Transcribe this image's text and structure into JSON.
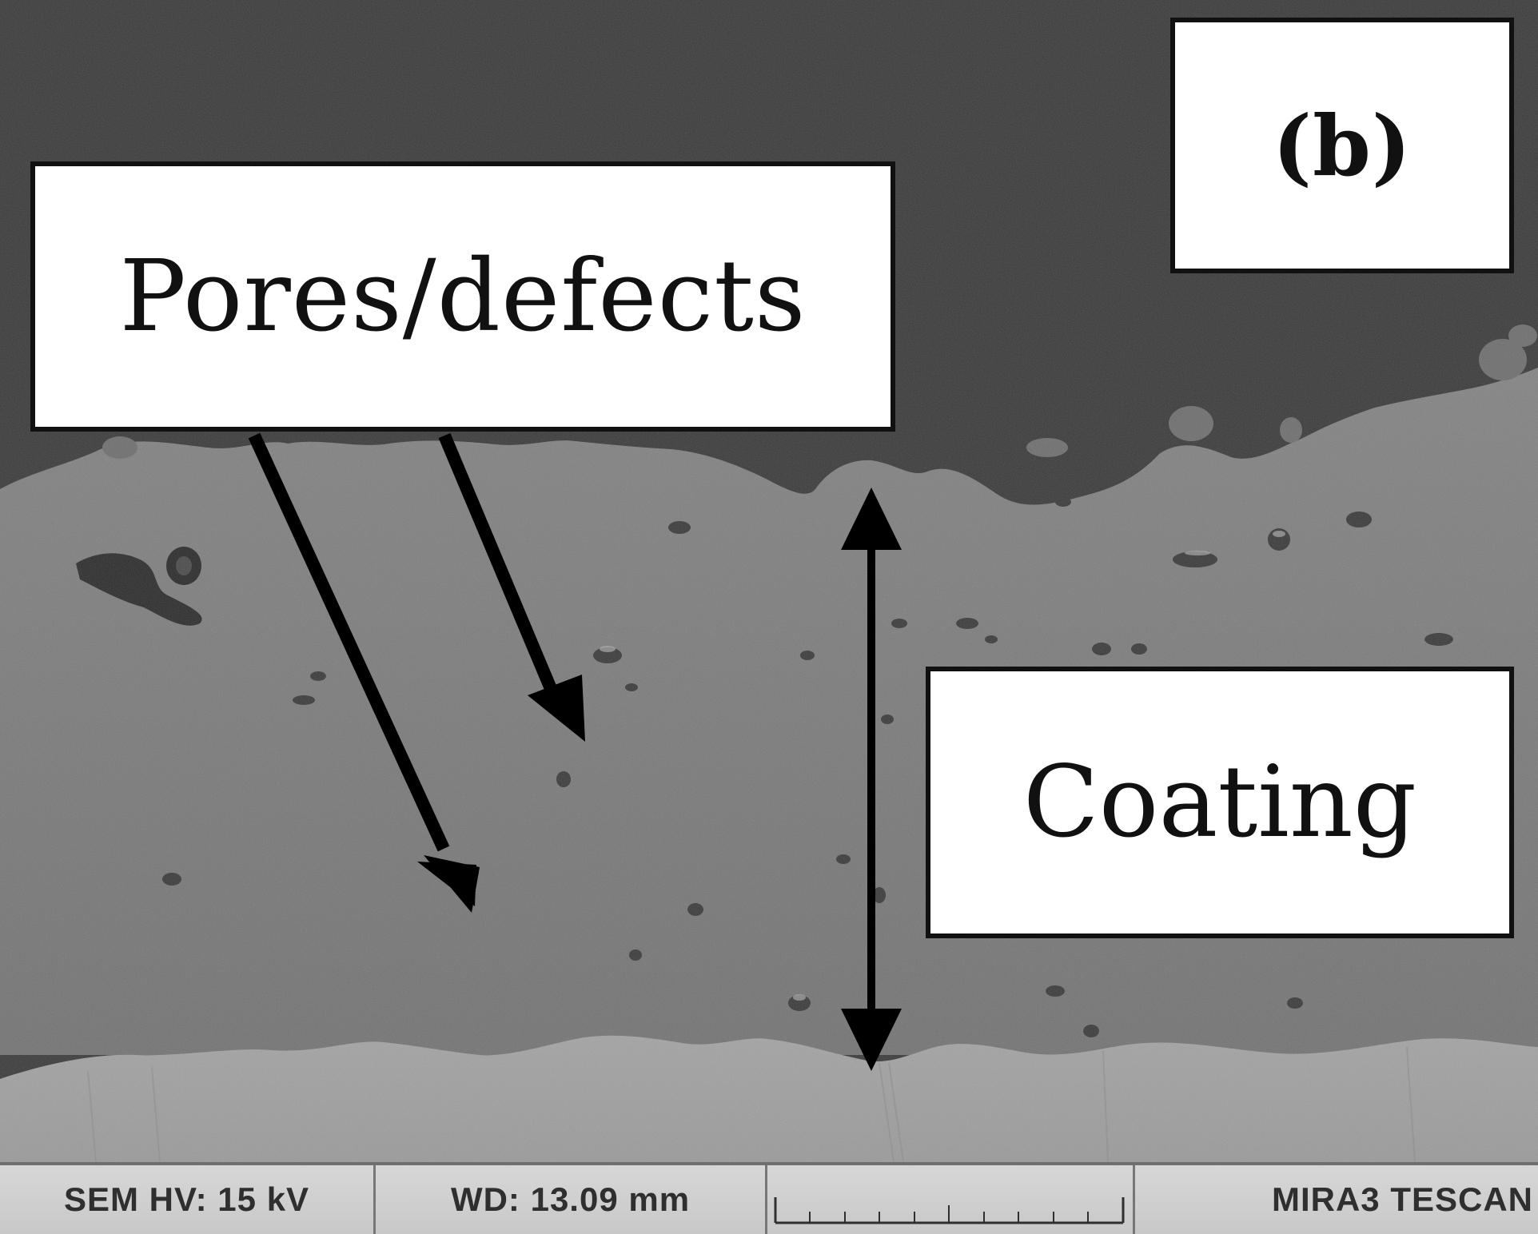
{
  "labels": {
    "panel": "(b)",
    "pores": "Pores/defects",
    "coating": "Coating"
  },
  "databar": {
    "hv": "SEM HV: 15 kV",
    "wd": "WD: 13.09 mm",
    "brand": "MIRA3 TESCAN"
  },
  "colors": {
    "background": "#3a3a3a",
    "coating": "#7c7c7c",
    "substrate": "#9f9f9f",
    "labelBox": "#ffffff",
    "arrow": "#000000"
  }
}
